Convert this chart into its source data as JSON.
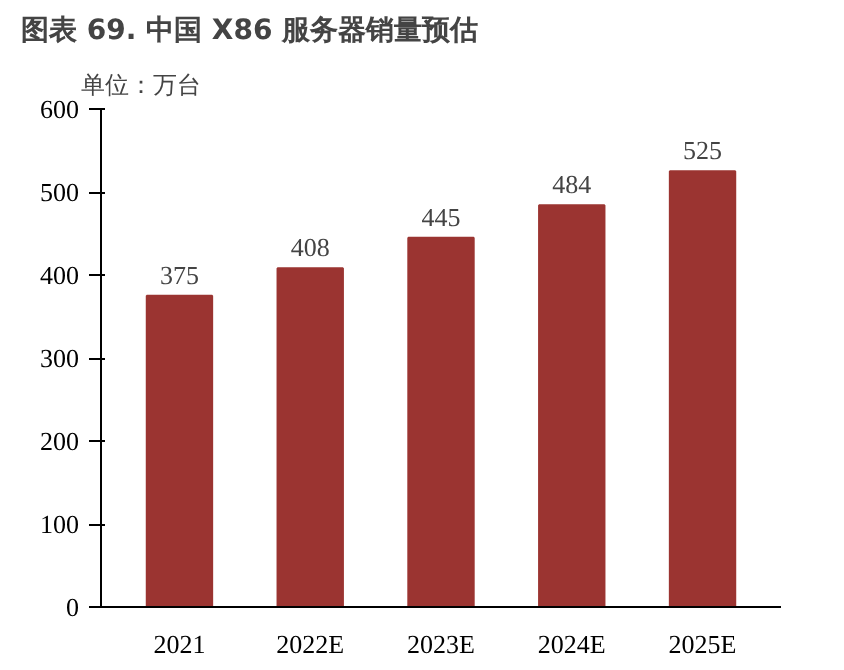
{
  "chart_data": {
    "type": "bar",
    "title": "图表 69. 中国 X86 服务器销量预估",
    "ylabel": "单位：万台",
    "categories": [
      "2021",
      "2022E",
      "2023E",
      "2024E",
      "2025E"
    ],
    "values": [
      375,
      408,
      445,
      484,
      525
    ],
    "color": "#9b3431",
    "ylim": [
      0,
      600
    ],
    "yticks": [
      0,
      100,
      200,
      300,
      400,
      500,
      600
    ],
    "grid": false,
    "data_labels": true
  }
}
